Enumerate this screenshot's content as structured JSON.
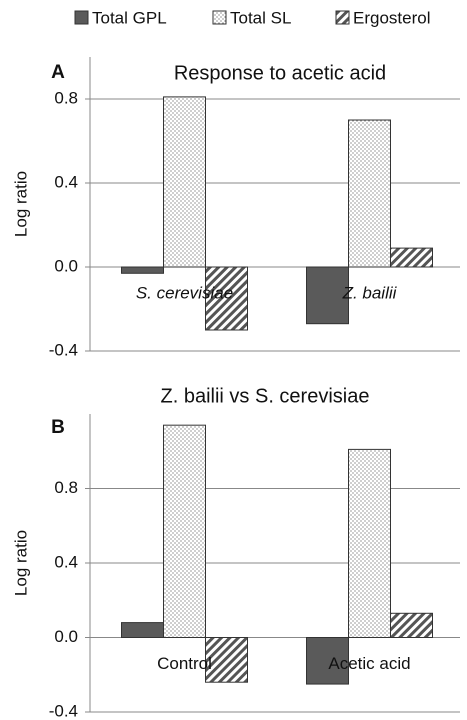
{
  "chart_data": [
    {
      "type": "bar",
      "panel": "A",
      "title": "Response to acetic acid",
      "ylabel": "Log ratio",
      "categories": [
        "S. cerevisiae",
        "Z. bailii"
      ],
      "category_italic": true,
      "series": [
        {
          "name": "Total GPL",
          "color": "#5a5a5a",
          "pattern": "solid",
          "values": [
            -0.03,
            -0.27
          ]
        },
        {
          "name": "Total SL",
          "color": "#ffffff",
          "pattern": "dots",
          "values": [
            0.81,
            0.7
          ]
        },
        {
          "name": "Ergosterol",
          "color": "#ffffff",
          "pattern": "hatch",
          "values": [
            -0.3,
            0.09
          ]
        }
      ],
      "ylim": [
        -0.4,
        1.0
      ],
      "yticks": [
        -0.4,
        {
          "value": 0,
          "label": "0.0"
        },
        0.4,
        0.8
      ],
      "grid": true
    },
    {
      "type": "bar",
      "panel": "B",
      "title": "Z. bailii vs S. cerevisiae",
      "ylabel": "Log ratio",
      "categories": [
        "Control",
        "Acetic acid"
      ],
      "category_italic": false,
      "series": [
        {
          "color": "#5a5a5a",
          "pattern": "solid",
          "values": [
            0.08,
            -0.25
          ]
        },
        {
          "color": "#ffffff",
          "pattern": "dots",
          "values": [
            1.14,
            1.01
          ]
        },
        {
          "color": "#ffffff",
          "pattern": "hatch",
          "values": [
            -0.24,
            0.13
          ]
        }
      ],
      "ylim": [
        -0.4,
        1.2
      ],
      "yticks": [
        -0.4,
        {
          "value": 0,
          "label": "0.0"
        },
        0.4,
        0.8
      ],
      "grid": true
    }
  ]
}
